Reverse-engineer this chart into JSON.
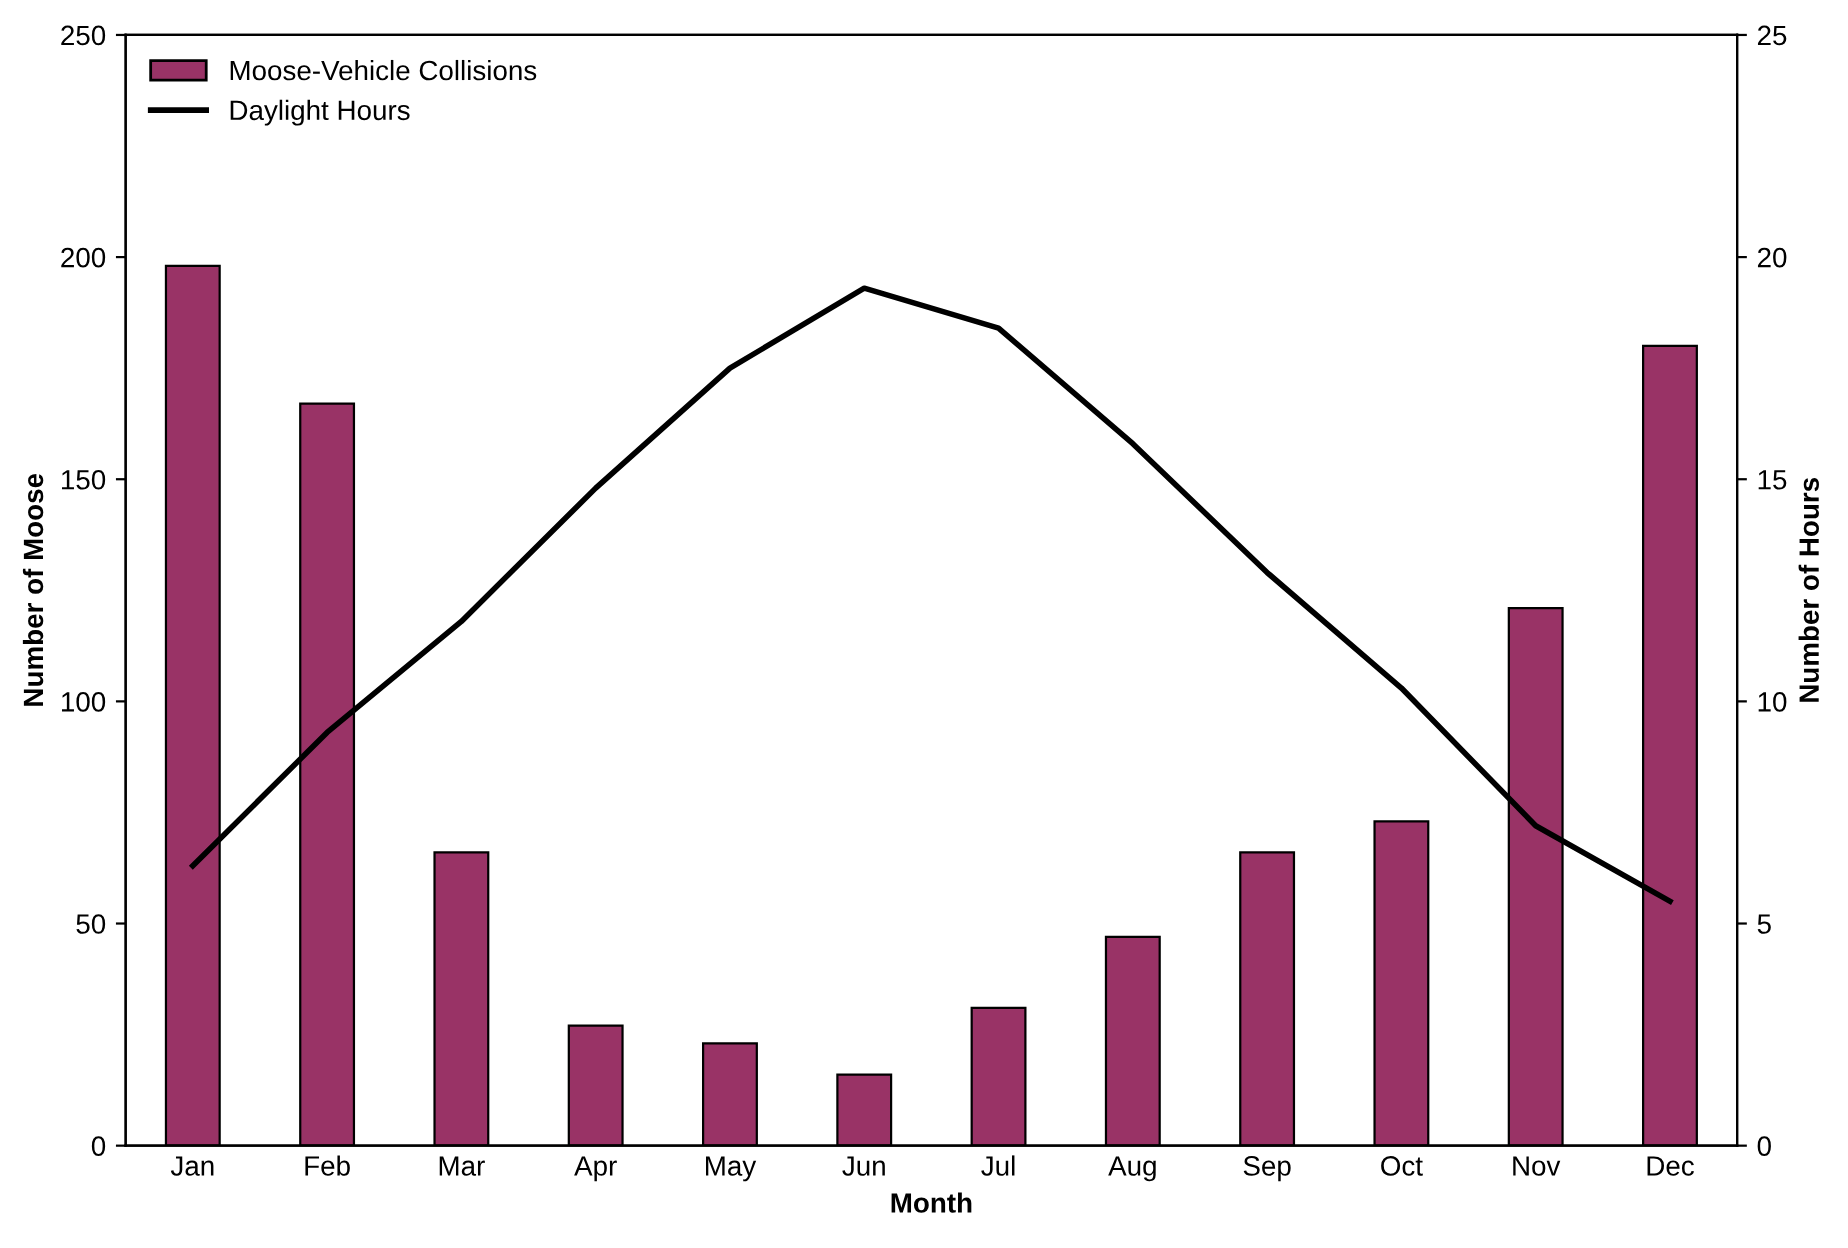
{
  "chart_data": {
    "type": "bar",
    "xlabel": "Month",
    "ylabel": "Number of Moose",
    "y2label": "Number of Hours",
    "categories": [
      "Jan",
      "Feb",
      "Mar",
      "Apr",
      "May",
      "Jun",
      "Jul",
      "Aug",
      "Sep",
      "Oct",
      "Nov",
      "Dec"
    ],
    "series": [
      {
        "name": "Moose-Vehicle Collisions",
        "color": "#993366",
        "values": [
          198,
          167,
          66,
          27,
          23,
          16,
          31,
          47,
          66,
          73,
          121,
          180
        ]
      },
      {
        "name": "Daylight Hours",
        "type": "line",
        "axis": "y2",
        "color": "#000000",
        "values": [
          6.3,
          9.3,
          11.8,
          14.8,
          17.5,
          19.3,
          18.4,
          15.8,
          12.9,
          10.3,
          7.2,
          5.5
        ]
      }
    ],
    "ylim": [
      0,
      250
    ],
    "yticks": [
      0,
      50,
      100,
      150,
      200,
      250
    ],
    "y2lim": [
      0,
      25
    ],
    "y2ticks": [
      0,
      5,
      10,
      15,
      20,
      25
    ],
    "grid": false,
    "legend": "top left",
    "marker": "none",
    "line_style": "solid"
  }
}
